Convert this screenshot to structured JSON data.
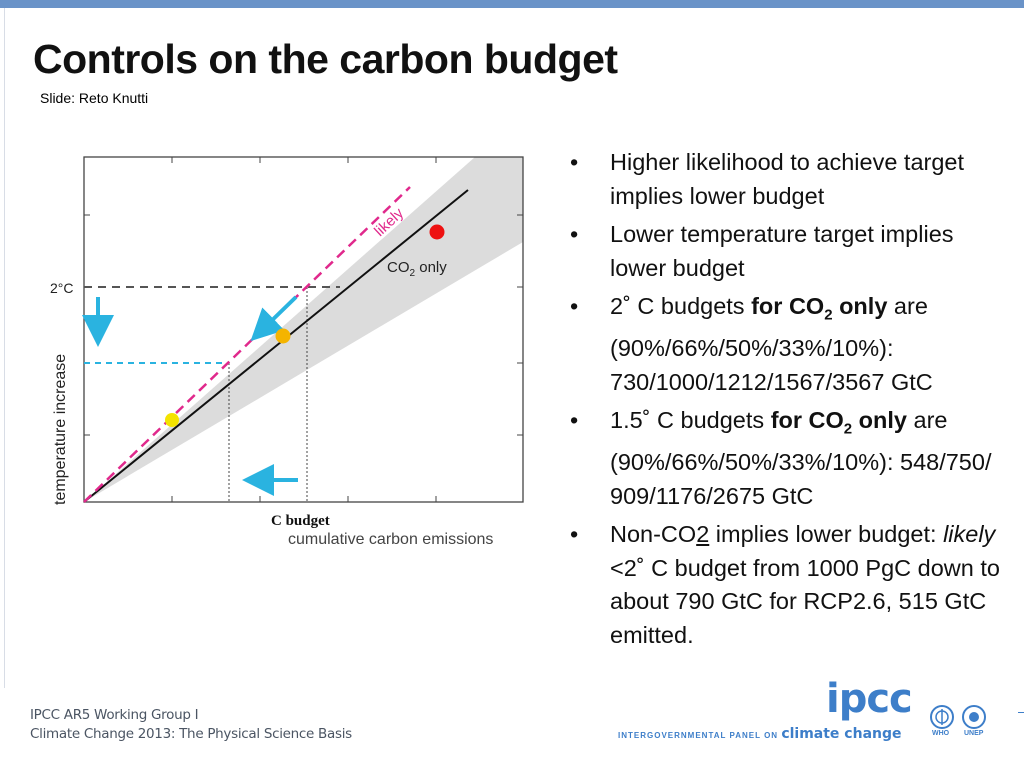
{
  "slide": {
    "title": "Controls on the carbon budget",
    "credit": "Slide: Reto Knutti"
  },
  "diagram": {
    "y_axis_label": "temperature increase",
    "x_axis_label_bold": "C budget",
    "x_axis_label": "cumulative carbon emissions",
    "target_label": "2°C",
    "likely_label": "likely",
    "co2_only_label": "CO",
    "co2_only_sub": "2",
    "co2_only_suffix": " only",
    "colors": {
      "likely_line": "#e0298c",
      "co2_line": "#111111",
      "arrow": "#2ab3e0",
      "red_dot": "#ee1111",
      "yellow_dot": "#f4b400",
      "uncertainty_band": "#dcdcdc"
    }
  },
  "bullets": [
    {
      "text": "Higher likelihood to achieve target implies lower budget"
    },
    {
      "text": "Lower temperature target implies lower budget"
    },
    {
      "pre": "2˚ C budgets ",
      "bold": "for CO",
      "bold_sub": "2",
      "bold_post": " only",
      "post": " are (90%/66%/50%/33%/10%): 730/1000/1212/1567/3567 GtC"
    },
    {
      "pre": "1.5˚ C budgets ",
      "bold": "for CO",
      "bold_sub": "2",
      "bold_post": " only",
      "post": " are (90%/66%/50%/33%/10%): 548/750/ 909/1176/2675 GtC"
    },
    {
      "pre": "Non-CO",
      "underline": "2",
      "post1": " implies lower budget: ",
      "italic": "likely",
      "post2": " <2˚ C budget from 1000 PgC down to about 790 GtC for RCP2.6, 515 GtC emitted."
    }
  ],
  "footer": {
    "line1": "IPCC AR5 Working Group I",
    "line2": "Climate Change 2013: The Physical Science Basis",
    "logo": "ipcc",
    "org_small": "INTERGOVERNMENTAL PANEL ON ",
    "org_big": "climate change",
    "who": "WHO",
    "unep": "UNEP"
  }
}
